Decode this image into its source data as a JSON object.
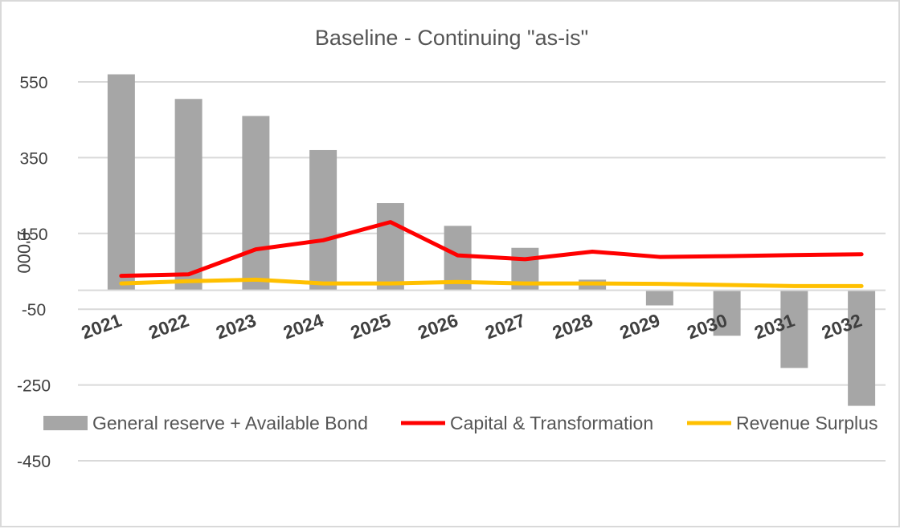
{
  "chart_data": {
    "type": "bar",
    "title": "Baseline - Continuing \"as-is\"",
    "xlabel": "",
    "ylabel": "£'000",
    "categories": [
      "2021",
      "2022",
      "2023",
      "2024",
      "2025",
      "2026",
      "2027",
      "2028",
      "2029",
      "2030",
      "2031",
      "2032"
    ],
    "y_ticks": [
      550,
      350,
      150,
      -50,
      -250,
      -450
    ],
    "ylim": [
      -450,
      550
    ],
    "grid": true,
    "legend_position": "bottom",
    "series": [
      {
        "name": "General reserve + Available Bond",
        "kind": "bar",
        "color": "#a6a6a6",
        "values": [
          570,
          505,
          460,
          370,
          230,
          170,
          112,
          28,
          -40,
          -120,
          -205,
          -305
        ]
      },
      {
        "name": "Capital & Transformation",
        "kind": "line",
        "color": "#ff0000",
        "values": [
          38,
          42,
          108,
          132,
          180,
          92,
          82,
          102,
          88,
          90,
          93,
          95
        ]
      },
      {
        "name": "Revenue Surplus",
        "kind": "line",
        "color": "#ffc000",
        "values": [
          18,
          24,
          28,
          18,
          18,
          22,
          18,
          18,
          17,
          14,
          11,
          11
        ]
      }
    ]
  }
}
